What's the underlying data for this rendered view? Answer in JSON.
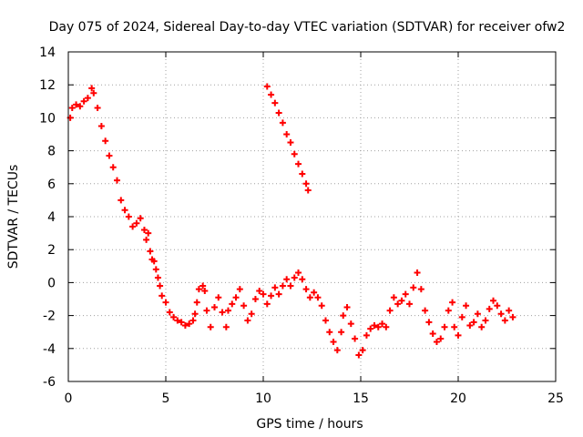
{
  "chart_data": {
    "type": "scatter",
    "title": "Day 075 of 2024, Sidereal Day-to-day VTEC variation (SDTVAR) for receiver ofw2",
    "xlabel": "GPS time / hours",
    "ylabel": "SDTVAR / TECUs",
    "xlim": [
      0,
      25
    ],
    "ylim": [
      -6,
      14
    ],
    "xticks": [
      0,
      5,
      10,
      15,
      20,
      25
    ],
    "yticks": [
      -6,
      -4,
      -2,
      0,
      2,
      4,
      6,
      8,
      10,
      12,
      14
    ],
    "grid": true,
    "marker": "+",
    "color": "#ff0000",
    "series": [
      {
        "name": "segment-1",
        "points": [
          [
            0.1,
            10.0
          ],
          [
            0.2,
            10.6
          ],
          [
            0.4,
            10.8
          ],
          [
            0.6,
            10.7
          ],
          [
            0.8,
            11.0
          ],
          [
            1.0,
            11.2
          ],
          [
            1.2,
            11.8
          ],
          [
            1.3,
            11.5
          ],
          [
            1.5,
            10.6
          ],
          [
            1.7,
            9.5
          ],
          [
            1.9,
            8.6
          ],
          [
            2.1,
            7.7
          ],
          [
            2.3,
            7.0
          ],
          [
            2.5,
            6.2
          ],
          [
            2.7,
            5.0
          ],
          [
            2.9,
            4.4
          ],
          [
            3.1,
            4.0
          ],
          [
            3.3,
            3.4
          ],
          [
            3.5,
            3.6
          ],
          [
            3.7,
            3.9
          ],
          [
            3.9,
            3.2
          ],
          [
            4.0,
            2.6
          ],
          [
            4.1,
            3.0
          ],
          [
            4.2,
            1.9
          ],
          [
            4.3,
            1.4
          ],
          [
            4.4,
            1.3
          ],
          [
            4.5,
            0.8
          ],
          [
            4.6,
            0.3
          ],
          [
            4.7,
            -0.2
          ],
          [
            4.8,
            -0.8
          ],
          [
            5.0,
            -1.2
          ],
          [
            5.2,
            -1.8
          ],
          [
            5.4,
            -2.1
          ],
          [
            5.6,
            -2.3
          ],
          [
            5.8,
            -2.4
          ],
          [
            6.0,
            -2.6
          ],
          [
            6.2,
            -2.5
          ],
          [
            6.4,
            -2.3
          ],
          [
            6.5,
            -1.9
          ],
          [
            6.6,
            -1.2
          ],
          [
            6.7,
            -0.4
          ],
          [
            6.9,
            -0.2
          ],
          [
            7.0,
            -0.5
          ],
          [
            7.1,
            -1.7
          ],
          [
            7.3,
            -2.7
          ],
          [
            7.5,
            -1.5
          ],
          [
            7.7,
            -0.9
          ],
          [
            7.9,
            -1.8
          ],
          [
            8.1,
            -2.7
          ],
          [
            8.2,
            -1.7
          ],
          [
            8.4,
            -1.3
          ],
          [
            8.6,
            -0.9
          ],
          [
            8.8,
            -0.4
          ],
          [
            9.0,
            -1.4
          ],
          [
            9.2,
            -2.3
          ],
          [
            9.4,
            -1.9
          ],
          [
            9.6,
            -1.0
          ],
          [
            9.8,
            -0.5
          ],
          [
            10.0,
            -0.7
          ],
          [
            10.2,
            -1.3
          ],
          [
            10.4,
            -0.8
          ],
          [
            10.6,
            -0.3
          ],
          [
            10.8,
            -0.7
          ],
          [
            11.0,
            -0.2
          ],
          [
            11.2,
            0.2
          ],
          [
            11.4,
            -0.2
          ],
          [
            11.6,
            0.3
          ],
          [
            11.8,
            0.6
          ],
          [
            12.0,
            0.2
          ],
          [
            12.2,
            -0.4
          ],
          [
            12.4,
            -0.9
          ],
          [
            12.6,
            -0.6
          ],
          [
            12.8,
            -0.9
          ],
          [
            13.0,
            -1.4
          ],
          [
            13.2,
            -2.3
          ],
          [
            13.4,
            -3.0
          ],
          [
            13.6,
            -3.6
          ],
          [
            13.8,
            -4.1
          ],
          [
            14.0,
            -3.0
          ],
          [
            14.1,
            -2.0
          ],
          [
            14.3,
            -1.5
          ],
          [
            14.5,
            -2.5
          ],
          [
            14.7,
            -3.4
          ],
          [
            14.9,
            -4.4
          ],
          [
            15.1,
            -4.1
          ],
          [
            15.3,
            -3.2
          ],
          [
            15.5,
            -2.8
          ],
          [
            15.7,
            -2.6
          ],
          [
            15.9,
            -2.7
          ],
          [
            16.1,
            -2.5
          ],
          [
            16.3,
            -2.7
          ],
          [
            16.5,
            -1.7
          ],
          [
            16.7,
            -0.9
          ],
          [
            16.9,
            -1.3
          ],
          [
            17.1,
            -1.1
          ],
          [
            17.3,
            -0.7
          ],
          [
            17.5,
            -1.3
          ],
          [
            17.7,
            -0.3
          ],
          [
            17.9,
            0.6
          ],
          [
            18.1,
            -0.4
          ],
          [
            18.3,
            -1.7
          ],
          [
            18.5,
            -2.4
          ],
          [
            18.7,
            -3.1
          ],
          [
            18.9,
            -3.6
          ],
          [
            19.1,
            -3.4
          ],
          [
            19.3,
            -2.7
          ],
          [
            19.5,
            -1.7
          ],
          [
            19.7,
            -1.2
          ],
          [
            19.8,
            -2.7
          ],
          [
            20.0,
            -3.2
          ],
          [
            20.2,
            -2.1
          ],
          [
            20.4,
            -1.4
          ],
          [
            20.6,
            -2.6
          ],
          [
            20.8,
            -2.4
          ],
          [
            21.0,
            -1.9
          ],
          [
            21.2,
            -2.7
          ],
          [
            21.4,
            -2.3
          ],
          [
            21.6,
            -1.6
          ],
          [
            21.8,
            -1.1
          ],
          [
            22.0,
            -1.4
          ],
          [
            22.2,
            -1.9
          ],
          [
            22.4,
            -2.3
          ],
          [
            22.6,
            -1.7
          ],
          [
            22.8,
            -2.1
          ]
        ]
      },
      {
        "name": "segment-2",
        "points": [
          [
            10.2,
            11.9
          ],
          [
            10.4,
            11.4
          ],
          [
            10.6,
            10.9
          ],
          [
            10.8,
            10.3
          ],
          [
            11.0,
            9.7
          ],
          [
            11.2,
            9.0
          ],
          [
            11.4,
            8.5
          ],
          [
            11.6,
            7.8
          ],
          [
            11.8,
            7.2
          ],
          [
            12.0,
            6.6
          ],
          [
            12.2,
            6.0
          ],
          [
            12.3,
            5.6
          ]
        ]
      }
    ]
  }
}
